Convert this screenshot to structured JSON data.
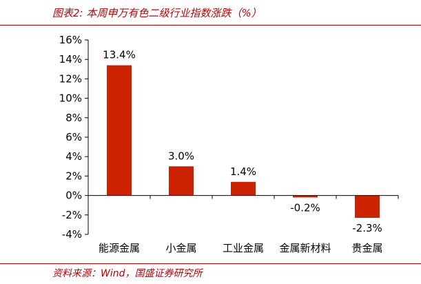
{
  "header": {
    "title": "图表2:  本周申万有色二级行业指数涨跌（%）"
  },
  "footer": {
    "source": "资料来源：Wind，国盛证券研究所"
  },
  "colors": {
    "bar": "#cc2200",
    "accent": "#c00000"
  },
  "chart_data": {
    "type": "bar",
    "categories": [
      "能源金属",
      "小金属",
      "工业金属",
      "金属新材料",
      "贵金属"
    ],
    "values": [
      13.4,
      3.0,
      1.4,
      -0.2,
      -2.3
    ],
    "data_labels": [
      "13.4%",
      "3.0%",
      "1.4%",
      "-0.2%",
      "-2.3%"
    ],
    "y_ticks": [
      16,
      14,
      12,
      10,
      8,
      6,
      4,
      2,
      0,
      -2,
      -4
    ],
    "y_tick_labels": [
      "16%",
      "14%",
      "12%",
      "10%",
      "8%",
      "6%",
      "4%",
      "2%",
      "0%",
      "-2%",
      "-4%"
    ],
    "ylim": [
      -4,
      16
    ],
    "grid": false,
    "legend": "none"
  }
}
